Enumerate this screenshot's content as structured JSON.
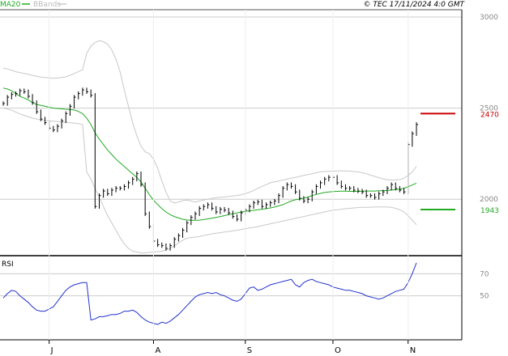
{
  "header": {
    "legend_ma": "MA20",
    "legend_bb": "BBands",
    "copyright": "© TEC 17/11/2024 4:0 GMT"
  },
  "colors": {
    "price": "#000000",
    "ma20": "#22aa22",
    "bbands": "#c8c8c8",
    "rsi": "#2233cc",
    "resistance": "#cc0000",
    "support": "#22aa22",
    "grid": "#cccccc",
    "tick_text": "#888888"
  },
  "chart_data": [
    {
      "type": "ohlc",
      "title": "",
      "xlabel": "",
      "ylabel": "",
      "x_tick_labels": [
        "J",
        "A",
        "S",
        "O",
        "N"
      ],
      "y_ticks": [
        2000,
        2500,
        3000
      ],
      "y_tick_labels": [
        "2000",
        "2500",
        "3000"
      ],
      "ylim": [
        1690,
        3040
      ],
      "grid": true,
      "legend_position": "top-left",
      "levels": [
        {
          "label": "2470",
          "value": 2470,
          "color": "#cc0000"
        },
        {
          "label": "1943",
          "value": 1943,
          "color": "#22aa22"
        }
      ],
      "close": [
        2525,
        2560,
        2575,
        2580,
        2595,
        2590,
        2565,
        2530,
        2480,
        2440,
        2420,
        2390,
        2380,
        2400,
        2430,
        2470,
        2510,
        2560,
        2580,
        2600,
        2590,
        2570,
        1960,
        2020,
        2045,
        2030,
        2050,
        2060,
        2060,
        2070,
        2090,
        2110,
        2140,
        2080,
        1920,
        1850,
        1770,
        1750,
        1745,
        1730,
        1745,
        1780,
        1800,
        1830,
        1870,
        1900,
        1920,
        1950,
        1960,
        1970,
        1950,
        1930,
        1945,
        1940,
        1925,
        1905,
        1890,
        1925,
        1940,
        1960,
        1980,
        1985,
        1960,
        1970,
        1980,
        1990,
        2020,
        2060,
        2080,
        2070,
        2040,
        2005,
        1990,
        2000,
        2040,
        2070,
        2090,
        2110,
        2120,
        2120,
        2090,
        2070,
        2060,
        2060,
        2050,
        2045,
        2040,
        2020,
        2020,
        2010,
        2030,
        2040,
        2060,
        2080,
        2060,
        2050,
        2040,
        2300,
        2360,
        2410
      ],
      "ma20": [
        2610,
        2605,
        2595,
        2580,
        2565,
        2555,
        2545,
        2530,
        2520,
        2515,
        2510,
        2505,
        2500,
        2498,
        2496,
        2494,
        2492,
        2490,
        2482,
        2470,
        2445,
        2410,
        2365,
        2330,
        2300,
        2270,
        2245,
        2220,
        2200,
        2180,
        2160,
        2140,
        2120,
        2095,
        2060,
        2025,
        1995,
        1970,
        1948,
        1930,
        1915,
        1905,
        1897,
        1890,
        1886,
        1884,
        1884,
        1885,
        1888,
        1892,
        1896,
        1900,
        1905,
        1910,
        1915,
        1920,
        1925,
        1930,
        1933,
        1936,
        1939,
        1942,
        1945,
        1948,
        1952,
        1957,
        1963,
        1970,
        1980,
        1990,
        1997,
        2001,
        2006,
        2012,
        2020,
        2026,
        2032,
        2037,
        2040,
        2042,
        2043,
        2044,
        2044,
        2043,
        2043,
        2043,
        2044,
        2045,
        2045,
        2045,
        2046,
        2047,
        2048,
        2050,
        2052,
        2055,
        2060,
        2068,
        2078,
        2088
      ],
      "bb_upper": [
        2720,
        2715,
        2708,
        2700,
        2695,
        2690,
        2685,
        2680,
        2675,
        2670,
        2668,
        2665,
        2664,
        2665,
        2668,
        2672,
        2680,
        2690,
        2700,
        2710,
        2800,
        2840,
        2860,
        2870,
        2865,
        2850,
        2820,
        2770,
        2700,
        2600,
        2510,
        2420,
        2350,
        2290,
        2260,
        2250,
        2220,
        2170,
        2100,
        2040,
        1990,
        1980,
        1985,
        1992,
        1995,
        1990,
        1985,
        1990,
        1995,
        2000,
        2005,
        2008,
        2010,
        2012,
        2015,
        2018,
        2020,
        2025,
        2030,
        2038,
        2048,
        2060,
        2070,
        2080,
        2090,
        2095,
        2100,
        2105,
        2110,
        2115,
        2120,
        2125,
        2130,
        2135,
        2140,
        2145,
        2150,
        2152,
        2153,
        2154,
        2155,
        2155,
        2155,
        2154,
        2152,
        2150,
        2145,
        2140,
        2132,
        2125,
        2118,
        2112,
        2107,
        2105,
        2105,
        2108,
        2115,
        2130,
        2150,
        2180
      ],
      "bb_lower": [
        2500,
        2495,
        2488,
        2478,
        2468,
        2460,
        2452,
        2445,
        2440,
        2436,
        2433,
        2430,
        2428,
        2426,
        2424,
        2422,
        2420,
        2418,
        2415,
        2410,
        2150,
        2110,
        2060,
        2010,
        1960,
        1910,
        1870,
        1830,
        1790,
        1755,
        1730,
        1715,
        1710,
        1705,
        1705,
        1708,
        1710,
        1712,
        1715,
        1720,
        1730,
        1745,
        1760,
        1775,
        1785,
        1790,
        1792,
        1795,
        1800,
        1805,
        1810,
        1813,
        1816,
        1820,
        1823,
        1826,
        1830,
        1834,
        1838,
        1842,
        1845,
        1850,
        1855,
        1860,
        1865,
        1870,
        1875,
        1880,
        1885,
        1890,
        1895,
        1900,
        1905,
        1910,
        1915,
        1920,
        1925,
        1930,
        1935,
        1940,
        1942,
        1945,
        1948,
        1950,
        1952,
        1954,
        1955,
        1955,
        1956,
        1957,
        1958,
        1958,
        1957,
        1955,
        1950,
        1942,
        1930,
        1910,
        1885,
        1860
      ]
    },
    {
      "type": "line",
      "title": "RSI",
      "xlabel": "",
      "ylabel": "",
      "x_tick_labels": [
        "J",
        "A",
        "S",
        "O",
        "N"
      ],
      "y_ticks": [
        50,
        70
      ],
      "y_tick_labels": [
        "50",
        "70"
      ],
      "ylim": [
        10,
        85
      ],
      "grid": true,
      "series": [
        {
          "values": [
            48,
            52,
            55,
            54,
            50,
            47,
            44,
            40,
            37,
            36,
            36,
            38,
            40,
            45,
            50,
            55,
            58,
            60,
            61,
            62,
            62,
            28,
            29,
            31,
            31,
            32,
            33,
            33,
            34,
            36,
            36,
            37,
            35,
            31,
            28,
            26,
            25,
            24,
            26,
            25,
            27,
            30,
            33,
            37,
            41,
            45,
            49,
            51,
            52,
            53,
            52,
            53,
            51,
            50,
            48,
            46,
            45,
            47,
            52,
            57,
            58,
            55,
            56,
            58,
            60,
            61,
            62,
            63,
            64,
            65,
            60,
            58,
            62,
            64,
            65,
            63,
            62,
            61,
            60,
            58,
            57,
            56,
            55,
            55,
            54,
            53,
            52,
            50,
            49,
            48,
            47,
            48,
            50,
            52,
            54,
            55,
            56,
            62,
            70,
            80
          ]
        }
      ]
    }
  ]
}
